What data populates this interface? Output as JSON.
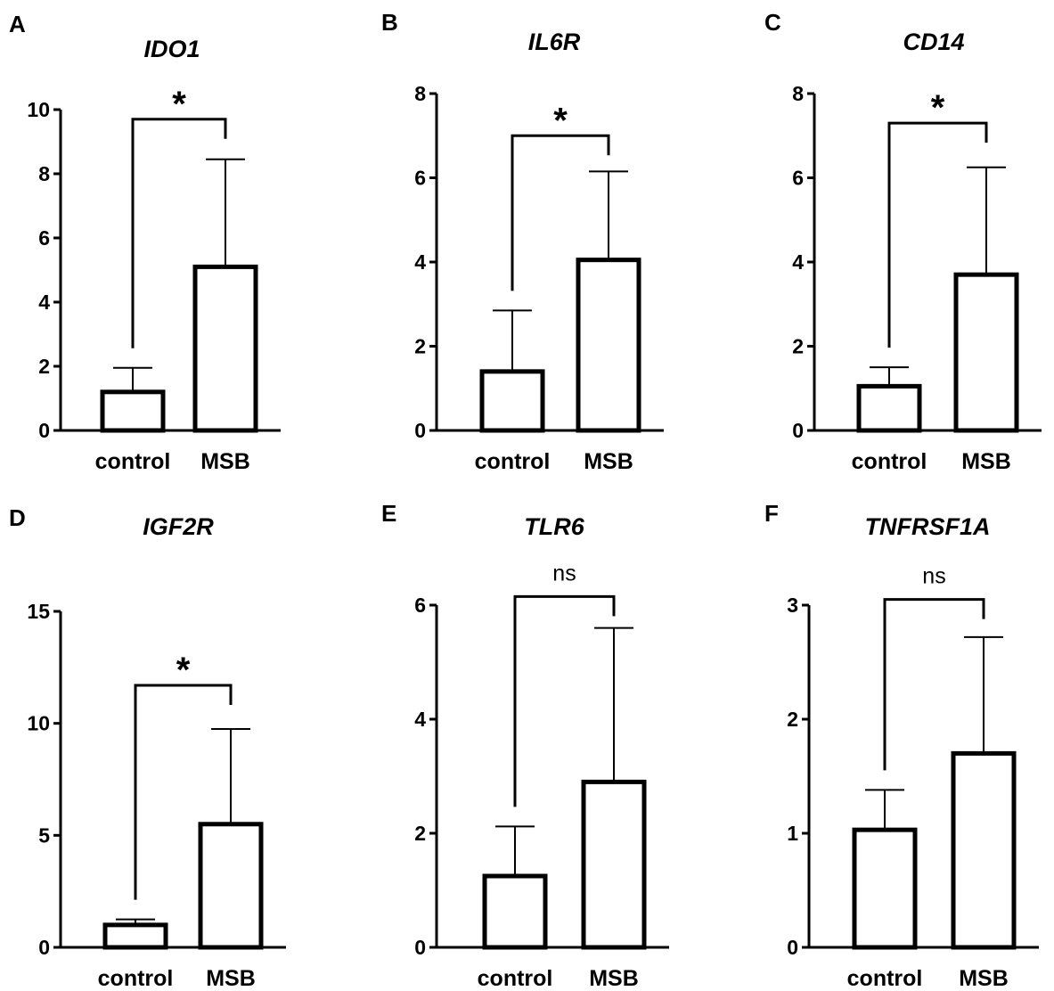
{
  "chart_data": [
    {
      "type": "bar",
      "panel": "A",
      "title": "IDO1",
      "categories": [
        "control",
        "MSB"
      ],
      "values": [
        1.2,
        5.1
      ],
      "errors": [
        0.75,
        3.35
      ],
      "ylim": [
        0,
        10
      ],
      "ticks": [
        0,
        2,
        4,
        6,
        8,
        10
      ],
      "tick_labels": [
        "0",
        "2",
        "4",
        "6",
        "8",
        "10"
      ],
      "significance": "*",
      "bracket_y": 9.7,
      "xlabel": "",
      "ylabel": ""
    },
    {
      "type": "bar",
      "panel": "B",
      "title": "IL6R",
      "categories": [
        "control",
        "MSB"
      ],
      "values": [
        1.4,
        4.05
      ],
      "errors": [
        1.45,
        2.1
      ],
      "ylim": [
        0,
        8
      ],
      "ticks": [
        0,
        2,
        4,
        6,
        8
      ],
      "tick_labels": [
        "0",
        "2",
        "4",
        "6",
        "8"
      ],
      "significance": "*",
      "bracket_y": 7.0,
      "xlabel": "",
      "ylabel": ""
    },
    {
      "type": "bar",
      "panel": "C",
      "title": "CD14",
      "categories": [
        "control",
        "MSB"
      ],
      "values": [
        1.05,
        3.7
      ],
      "errors": [
        0.45,
        2.55
      ],
      "ylim": [
        0,
        8
      ],
      "ticks": [
        0,
        2,
        4,
        6,
        8
      ],
      "tick_labels": [
        "0",
        "2",
        "4",
        "6",
        "8"
      ],
      "significance": "*",
      "bracket_y": 7.3,
      "xlabel": "",
      "ylabel": ""
    },
    {
      "type": "bar",
      "panel": "D",
      "title": "IGF2R",
      "categories": [
        "control",
        "MSB"
      ],
      "values": [
        1.0,
        5.5
      ],
      "errors": [
        0.25,
        4.25
      ],
      "ylim": [
        0,
        15
      ],
      "ticks": [
        0,
        5,
        10,
        15
      ],
      "tick_labels": [
        "0",
        "5",
        "10",
        "15"
      ],
      "significance": "*",
      "bracket_y": 11.7,
      "xlabel": "",
      "ylabel": ""
    },
    {
      "type": "bar",
      "panel": "E",
      "title": "TLR6",
      "categories": [
        "control",
        "MSB"
      ],
      "values": [
        1.25,
        2.9
      ],
      "errors": [
        0.87,
        2.7
      ],
      "ylim": [
        0,
        6
      ],
      "ticks": [
        0,
        2,
        4,
        6
      ],
      "tick_labels": [
        "0",
        "2",
        "4",
        "6"
      ],
      "significance": "ns",
      "bracket_y": 6.15,
      "xlabel": "",
      "ylabel": ""
    },
    {
      "type": "bar",
      "panel": "F",
      "title": "TNFRSF1A",
      "categories": [
        "control",
        "MSB"
      ],
      "values": [
        1.03,
        1.7
      ],
      "errors": [
        0.35,
        1.02
      ],
      "ylim": [
        0,
        3
      ],
      "ticks": [
        0,
        1,
        2,
        3
      ],
      "tick_labels": [
        "0",
        "1",
        "2",
        "3"
      ],
      "significance": "ns",
      "bracket_y": 3.05,
      "xlabel": "",
      "ylabel": ""
    }
  ]
}
